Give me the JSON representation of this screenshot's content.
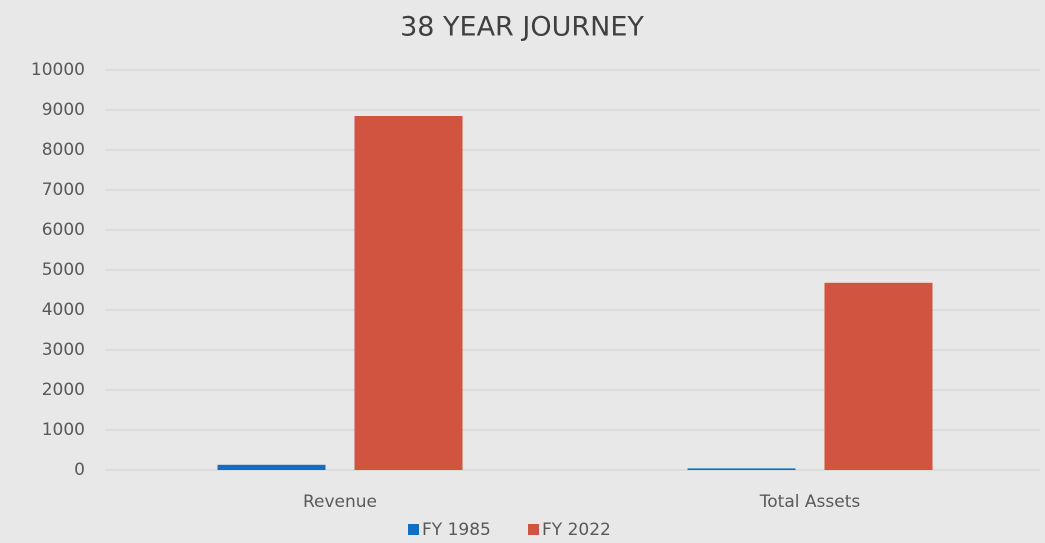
{
  "chart_data": {
    "type": "bar",
    "title": "38 YEAR JOURNEY",
    "categories": [
      "Revenue",
      "Total Assets"
    ],
    "series": [
      {
        "name": "FY 1985",
        "color": "#0f6fc6",
        "values": [
          130,
          40
        ]
      },
      {
        "name": "FY 2022",
        "color": "#d0543f",
        "values": [
          8850,
          4680
        ]
      }
    ],
    "ylim": [
      0,
      10000
    ],
    "yticks": [
      0,
      1000,
      2000,
      3000,
      4000,
      5000,
      6000,
      7000,
      8000,
      9000,
      10000
    ],
    "grid": true,
    "legend": "bottom"
  }
}
